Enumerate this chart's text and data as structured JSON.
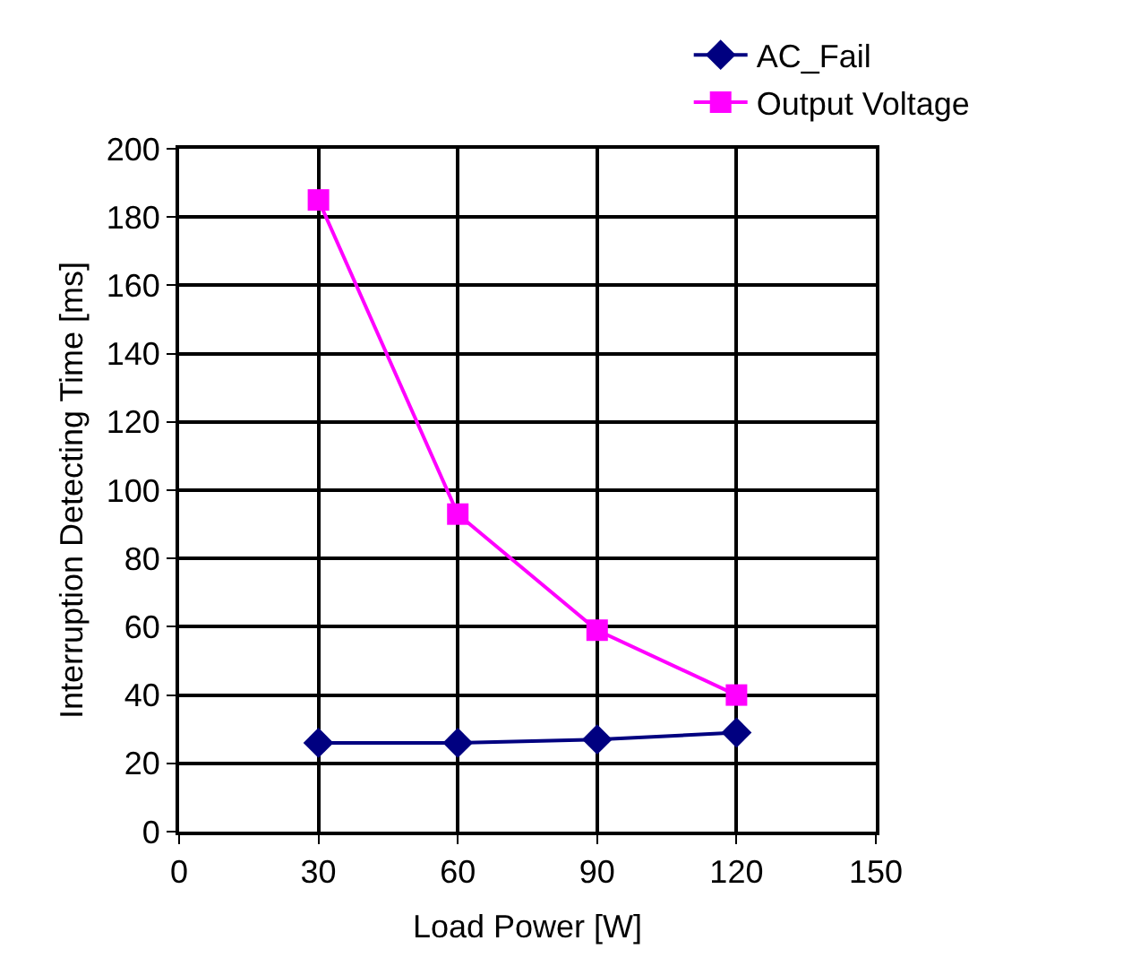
{
  "chart_data": {
    "type": "line",
    "xlabel": "Load Power [W]",
    "ylabel": "Interruption Detecting Time [ms]",
    "x": [
      30,
      60,
      90,
      120
    ],
    "series": [
      {
        "name": "AC_Fail",
        "color": "#000080",
        "marker": "diamond",
        "values": [
          26,
          26,
          27,
          29
        ]
      },
      {
        "name": "Output Voltage",
        "color": "#ff00ff",
        "marker": "square",
        "values": [
          185,
          93,
          59,
          40
        ]
      }
    ],
    "xlim": [
      0,
      150
    ],
    "xticks": [
      0,
      30,
      60,
      90,
      120,
      150
    ],
    "ylim": [
      0,
      200
    ],
    "yticks": [
      0,
      20,
      40,
      60,
      80,
      100,
      120,
      140,
      160,
      180,
      200
    ],
    "grid": true,
    "legend": "top right",
    "line_style": "solid"
  }
}
